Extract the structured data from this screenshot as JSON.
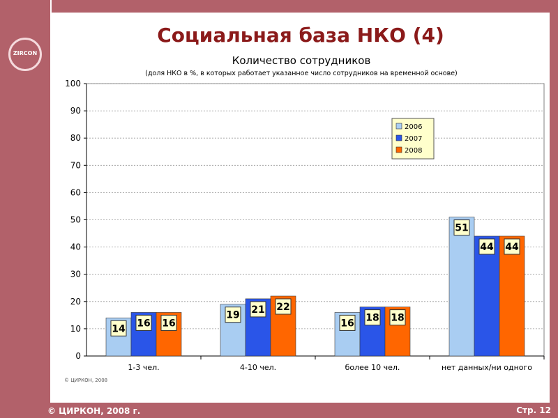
{
  "slide": {
    "title": "Социальная база НКО (4)",
    "logo_text": "ZIRCON",
    "footer_left": "© ЦИРКОН, 2008 г.",
    "footer_right": "Стр. 12"
  },
  "colors": {
    "band": "#b2616a",
    "title": "#8b1a1a",
    "series": [
      "#a9cdf2",
      "#2a55e8",
      "#ff6600"
    ]
  },
  "chart_data": {
    "type": "bar",
    "title": "Количество сотрудников",
    "subtitle": "(доля НКО в %, в которых работает указанное число сотрудников на временной основе)",
    "categories": [
      "1-3 чел.",
      "4-10 чел.",
      "более 10 чел.",
      "нет данных/ни одного"
    ],
    "series": [
      {
        "name": "2006",
        "values": [
          14,
          19,
          16,
          51
        ]
      },
      {
        "name": "2007",
        "values": [
          16,
          21,
          18,
          44
        ]
      },
      {
        "name": "2008",
        "values": [
          16,
          22,
          18,
          44
        ]
      }
    ],
    "ylim": [
      0,
      100
    ],
    "yticks": [
      0,
      10,
      20,
      30,
      40,
      50,
      60,
      70,
      80,
      90,
      100
    ],
    "grid": true,
    "legend_position": "top-right",
    "source_note": "© ЦИРКОН, 2008"
  }
}
